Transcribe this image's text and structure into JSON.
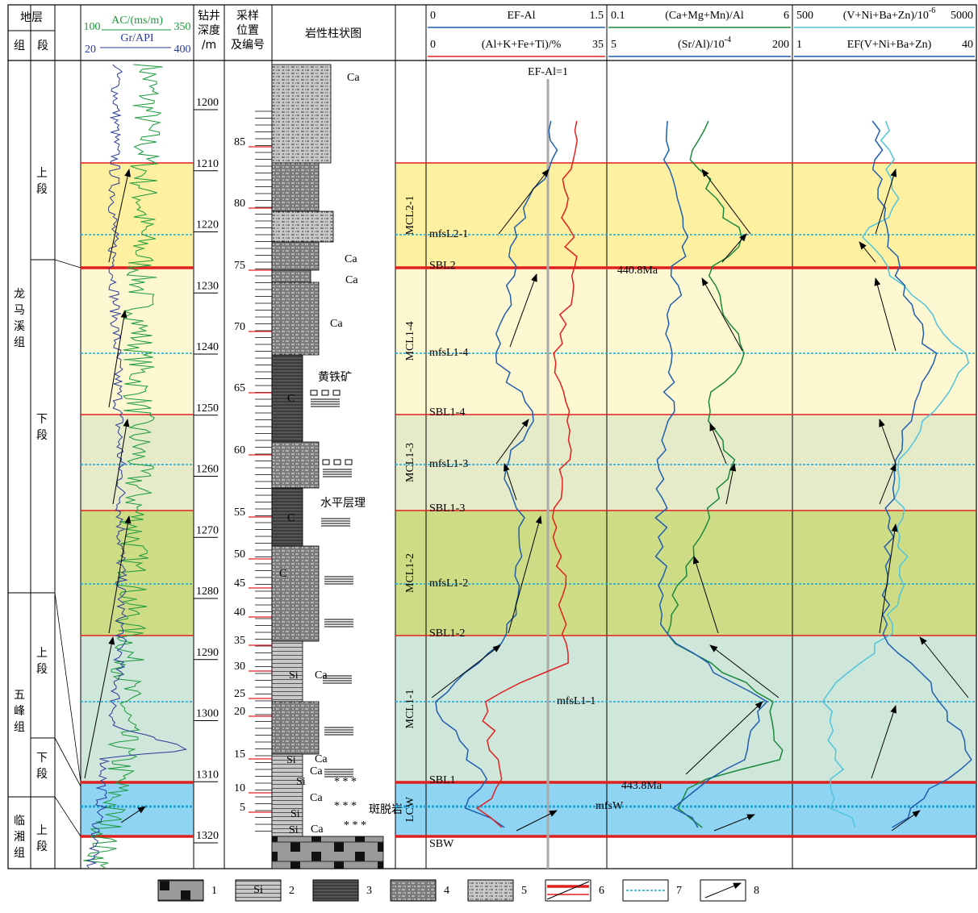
{
  "header": {
    "strata": "地层",
    "formation": "组",
    "member": "段",
    "ac": {
      "min": 100,
      "label": "AC/(ms/m)",
      "max": 350
    },
    "gr": {
      "min": 20,
      "label": "Gr/API",
      "max": 400
    },
    "depth": [
      "钻井",
      "深度",
      "/m"
    ],
    "sample": [
      "采样",
      "位置",
      "及编号"
    ],
    "lithology": "岩性柱状图"
  },
  "panels": [
    {
      "rows": [
        {
          "min": 0,
          "label": "EF-Al",
          "max": 1.5
        },
        {
          "min": 0,
          "label": "(Al+K+Fe+Ti)/%",
          "max": 35
        }
      ]
    },
    {
      "rows": [
        {
          "min": 0.1,
          "label": "(Ca+Mg+Mn)/Al",
          "max": 6
        },
        {
          "min": 5,
          "label": "(Sr/Al)/10",
          "sup": "-4",
          "max": 200
        }
      ]
    },
    {
      "rows": [
        {
          "min": 500,
          "label": "(V+Ni+Ba+Zn)/10",
          "sup": "-6",
          "max": 5000
        },
        {
          "min": 1,
          "label": "EF(V+Ni+Ba+Zn)",
          "max": 40
        }
      ]
    }
  ],
  "depth_ticks": [
    1200,
    1210,
    1220,
    1230,
    1240,
    1250,
    1260,
    1270,
    1280,
    1290,
    1300,
    1310,
    1320
  ],
  "sample_ticks": [
    85,
    80,
    75,
    70,
    65,
    60,
    55,
    50,
    45,
    40,
    35,
    30,
    25,
    20,
    15,
    10,
    5
  ],
  "formations": [
    {
      "name": "龙马溪组",
      "members": [
        "上段",
        "下段"
      ]
    },
    {
      "name": "五峰组",
      "members": [
        "上段",
        "下段"
      ]
    },
    {
      "name": "临湘组",
      "members": [
        "上段"
      ]
    }
  ],
  "sequences": [
    "MCL2-1",
    "MCL1-4",
    "MCL1-3",
    "MCL1-2",
    "MCL1-1",
    "LCW"
  ],
  "surfaces": [
    "SBL2",
    "SBL1-4",
    "SBL1-3",
    "SBL1-2",
    "SBL1",
    "SBW"
  ],
  "mfs": [
    "mfsL2-1",
    "mfsL1-4",
    "mfsL1-3",
    "mfsL1-2",
    "mfsL1-1",
    "mfsW"
  ],
  "annotations": {
    "ef_ref": "EF-Al=1",
    "age_upper": "440.8Ma",
    "age_lower": "443.8Ma",
    "pyrite": "黄铁矿",
    "bedding": "水平层理",
    "bentonite": "斑脱岩"
  },
  "lith_labels": [
    "Ca",
    "Ca",
    "Ca",
    "Ca",
    "C",
    "C",
    "C",
    "Si",
    "Ca",
    "Si",
    "Ca",
    "Ca",
    "Si",
    "Ca",
    "Si",
    "Ca",
    "Si",
    "* * *",
    "* * *",
    "* * *"
  ],
  "legend": [
    1,
    2,
    3,
    4,
    5,
    6,
    7,
    8
  ]
}
